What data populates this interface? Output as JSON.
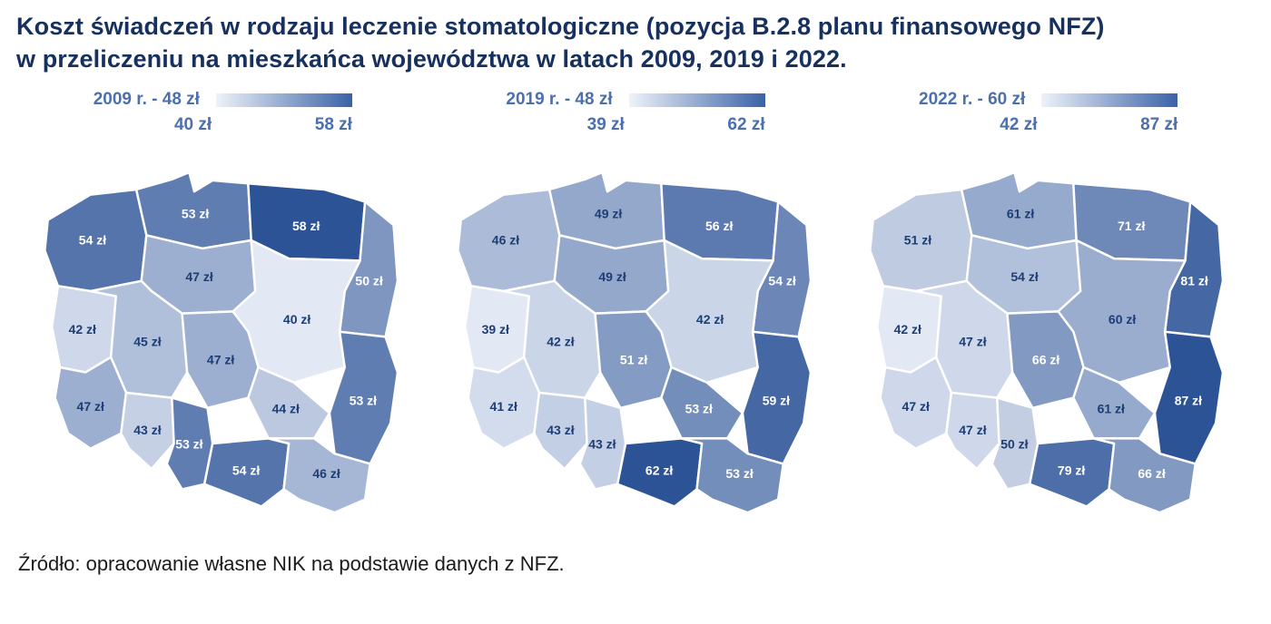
{
  "title": {
    "line1": "Koszt świadczeń w rodzaju leczenie stomatologiczne (pozycja B.2.8 planu finansowego NFZ)",
    "line2": "w przeliczeniu na mieszkańca województwa w latach 2009, 2019 i 2022."
  },
  "source": "Źródło: opracowanie własne NIK na podstawie danych z NFZ.",
  "colors": {
    "scale_min": "#e3e9f4",
    "scale_max": "#2d5397",
    "legend_text": "#4c6fae",
    "value_text_dark": "#1d3e75",
    "value_text_light": "#ffffff",
    "title_text": "#16305f",
    "region_border": "#ffffff"
  },
  "chart_data": {
    "type": "choropleth",
    "title": "Koszt świadczeń w rodzaju leczenie stomatologiczne (pozycja B.2.8 planu finansowego NFZ) w przeliczeniu na mieszkańca województwa w latach 2009, 2019 i 2022.",
    "unit": "zł",
    "regions": [
      "zachodniopomorskie",
      "pomorskie",
      "warmińsko-mazurskie",
      "podlaskie",
      "kujawsko-pomorskie",
      "mazowieckie",
      "lubuskie",
      "wielkopolskie",
      "łódzkie",
      "lubelskie",
      "dolnośląskie",
      "opolskie",
      "śląskie",
      "świętokrzyskie",
      "małopolskie",
      "podkarpackie"
    ],
    "maps": [
      {
        "legend_label": "2009 r. - 48 zł",
        "min": 40,
        "max": 58,
        "min_label": "40 zł",
        "max_label": "58 zł",
        "values": [
          54,
          53,
          58,
          50,
          47,
          40,
          42,
          45,
          47,
          53,
          47,
          43,
          53,
          44,
          54,
          46
        ]
      },
      {
        "legend_label": "2019 r. - 48 zł",
        "min": 39,
        "max": 62,
        "min_label": "39 zł",
        "max_label": "62 zł",
        "values": [
          46,
          49,
          56,
          54,
          49,
          42,
          39,
          42,
          51,
          59,
          41,
          43,
          43,
          53,
          62,
          53
        ]
      },
      {
        "legend_label": "2022 r. - 60 zł",
        "min": 42,
        "max": 87,
        "min_label": "42 zł",
        "max_label": "87 zł",
        "values": [
          51,
          61,
          71,
          81,
          54,
          60,
          42,
          47,
          66,
          87,
          47,
          47,
          50,
          61,
          79,
          66
        ]
      }
    ]
  }
}
